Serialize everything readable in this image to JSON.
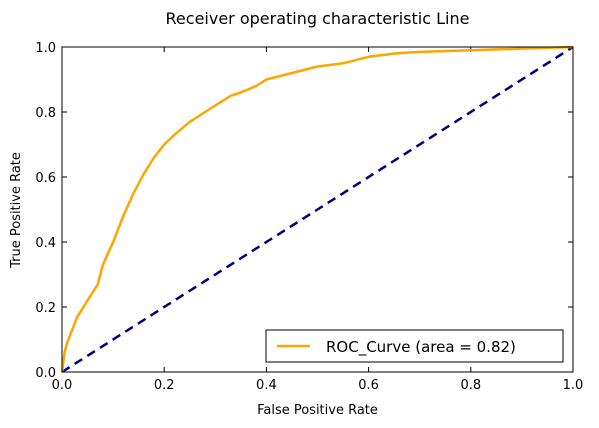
{
  "chart_data": {
    "type": "line",
    "title": "Receiver operating characteristic Line",
    "xlabel": "False Positive Rate",
    "ylabel": "True Positive Rate",
    "xlim": [
      0.0,
      1.0
    ],
    "ylim": [
      0.0,
      1.0
    ],
    "xticks": [
      "0.0",
      "0.2",
      "0.4",
      "0.6",
      "0.8",
      "1.0"
    ],
    "yticks": [
      "0.0",
      "0.2",
      "0.4",
      "0.6",
      "0.8",
      "1.0"
    ],
    "grid": false,
    "legend_position": "lower right",
    "series": [
      {
        "name": "ROC_Curve (area = 0.82)",
        "color": "#FFA500",
        "style": "solid",
        "x": [
          0.0,
          0.005,
          0.01,
          0.02,
          0.03,
          0.05,
          0.07,
          0.08,
          0.1,
          0.12,
          0.14,
          0.16,
          0.18,
          0.2,
          0.22,
          0.25,
          0.28,
          0.3,
          0.33,
          0.35,
          0.38,
          0.4,
          0.45,
          0.5,
          0.55,
          0.6,
          0.65,
          0.7,
          0.8,
          0.9,
          1.0
        ],
        "y": [
          0.0,
          0.06,
          0.09,
          0.13,
          0.17,
          0.22,
          0.27,
          0.33,
          0.4,
          0.48,
          0.55,
          0.61,
          0.66,
          0.7,
          0.73,
          0.77,
          0.8,
          0.82,
          0.85,
          0.86,
          0.88,
          0.9,
          0.92,
          0.94,
          0.95,
          0.97,
          0.98,
          0.985,
          0.99,
          0.995,
          1.0
        ]
      },
      {
        "name": "",
        "color": "#000080",
        "style": "dashed",
        "x": [
          0.0,
          1.0
        ],
        "y": [
          0.0,
          1.0
        ]
      }
    ]
  }
}
